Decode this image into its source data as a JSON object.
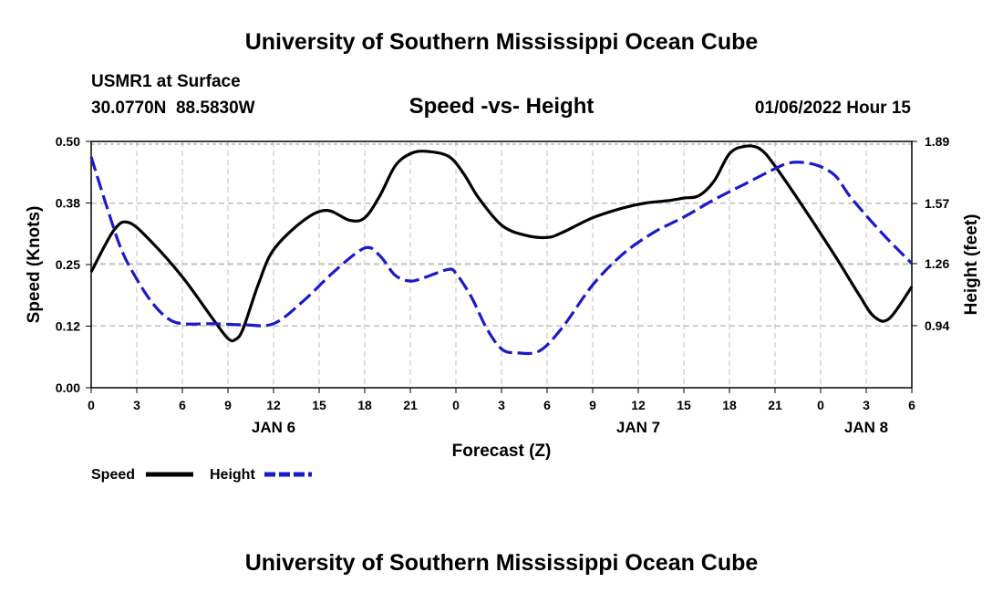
{
  "header": {
    "title": "University of Southern Mississippi Ocean Cube",
    "station": "USMR1 at Surface",
    "coords": "30.0770N  88.5830W",
    "chart_title": "Speed -vs- Height",
    "datetime": "01/06/2022 Hour 15",
    "footer_title": "University of Southern Mississippi Ocean Cube"
  },
  "legend": {
    "speed": "Speed",
    "height": "Height"
  },
  "colors": {
    "speed": "#000000",
    "height": "#1a1acc",
    "grid": "#bfbfbf"
  },
  "chart_data": {
    "type": "line",
    "title": "Speed -vs- Height",
    "xlabel": "Forecast (Z)",
    "ylabel": "Speed (Knots)",
    "y2label": "Height (feet)",
    "x_range_hours": [
      0,
      54
    ],
    "x_tick_labels": [
      "0",
      "3",
      "6",
      "9",
      "12",
      "15",
      "18",
      "21",
      "0",
      "3",
      "6",
      "9",
      "12",
      "15",
      "18",
      "21",
      "0",
      "3",
      "6"
    ],
    "day_labels": [
      {
        "label": "JAN 6",
        "hour": 12
      },
      {
        "label": "JAN 7",
        "hour": 36
      },
      {
        "label": "JAN 8",
        "hour": 51
      }
    ],
    "ylim": [
      0,
      0.5
    ],
    "y_ticks": [
      0.0,
      0.125,
      0.25,
      0.375,
      0.5
    ],
    "y_tick_labels": [
      "0.00",
      "0.12",
      "0.25",
      "0.38",
      "0.50"
    ],
    "y2lim": [
      0.62,
      1.89
    ],
    "y2_ticks": [
      0.94,
      1.26,
      1.57,
      1.89
    ],
    "y2_tick_labels": [
      "0.94",
      "1.26",
      "1.57",
      "1.89"
    ],
    "series": [
      {
        "name": "Speed",
        "axis": "left",
        "style": "solid",
        "x": [
          0,
          1.5,
          2.5,
          4,
          6,
          8,
          9,
          9.5,
          10,
          11,
          12,
          14,
          15.5,
          17,
          18,
          19,
          20,
          21,
          22,
          23.5,
          24.5,
          25.5,
          27,
          28.5,
          30,
          31,
          33,
          35,
          36.5,
          38,
          39,
          40,
          41,
          42,
          43,
          44,
          45,
          47,
          49,
          50.5,
          51.5,
          52.5,
          54
        ],
        "values": [
          0.235,
          0.32,
          0.335,
          0.295,
          0.225,
          0.14,
          0.1,
          0.098,
          0.12,
          0.21,
          0.28,
          0.34,
          0.36,
          0.34,
          0.345,
          0.39,
          0.45,
          0.475,
          0.48,
          0.47,
          0.435,
          0.385,
          0.33,
          0.31,
          0.305,
          0.315,
          0.345,
          0.365,
          0.375,
          0.38,
          0.385,
          0.39,
          0.42,
          0.475,
          0.49,
          0.485,
          0.45,
          0.36,
          0.265,
          0.19,
          0.145,
          0.14,
          0.205
        ]
      },
      {
        "name": "Height",
        "axis": "right",
        "style": "dashed",
        "x": [
          0,
          1,
          2,
          3,
          4,
          5,
          6,
          8,
          10,
          12,
          14,
          16,
          18,
          19,
          20,
          21,
          22,
          23.5,
          24,
          25,
          26,
          27,
          28,
          29.5,
          31,
          33,
          35,
          37,
          39,
          41,
          43,
          45,
          46,
          47,
          48,
          49,
          50,
          52,
          54
        ],
        "values": [
          1.81,
          1.56,
          1.33,
          1.18,
          1.06,
          0.98,
          0.95,
          0.95,
          0.945,
          0.95,
          1.07,
          1.22,
          1.34,
          1.3,
          1.2,
          1.17,
          1.19,
          1.23,
          1.21,
          1.09,
          0.93,
          0.82,
          0.8,
          0.81,
          0.93,
          1.15,
          1.31,
          1.42,
          1.5,
          1.59,
          1.67,
          1.75,
          1.78,
          1.78,
          1.76,
          1.71,
          1.6,
          1.42,
          1.26
        ]
      }
    ]
  }
}
